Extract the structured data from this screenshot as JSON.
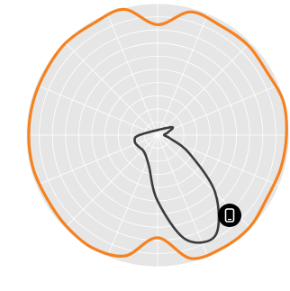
{
  "chart_data": {
    "type": "polar",
    "grid": true,
    "rings": 10,
    "spokes": 16,
    "colors": {
      "background": "#e6e6e6",
      "grid": "#ffffff",
      "outer_series": "#f5821f",
      "inner_series": "#3c3c3c",
      "badge": "#000000",
      "badge_icon": "#ffffff"
    },
    "series": [
      {
        "style": "outer-wavy",
        "angles_deg": [
          0,
          15,
          30,
          45,
          60,
          75,
          90,
          105,
          120,
          135,
          150,
          165,
          180,
          195,
          210,
          225,
          240,
          255,
          270,
          285,
          300,
          315,
          330,
          345
        ],
        "radius": [
          0.98,
          0.97,
          0.96,
          0.99,
          0.99,
          0.97,
          0.78,
          0.95,
          0.99,
          0.98,
          0.97,
          0.98,
          0.98,
          0.98,
          0.98,
          0.99,
          0.98,
          0.99,
          0.84,
          0.97,
          0.96,
          0.97,
          0.96,
          0.99
        ]
      },
      {
        "style": "inner-teardrop",
        "angles_deg": [
          330,
          345,
          0,
          15,
          30,
          45,
          60,
          75,
          90,
          105,
          120,
          135,
          150,
          165,
          180
        ],
        "radius": [
          0.12,
          0.08,
          0.05,
          0.1,
          0.28,
          0.62,
          0.88,
          0.82,
          0.5,
          0.25,
          0.18,
          0.16,
          0.17,
          0.18,
          0.14
        ]
      }
    ],
    "badge": {
      "icon": "phone-icon"
    }
  }
}
